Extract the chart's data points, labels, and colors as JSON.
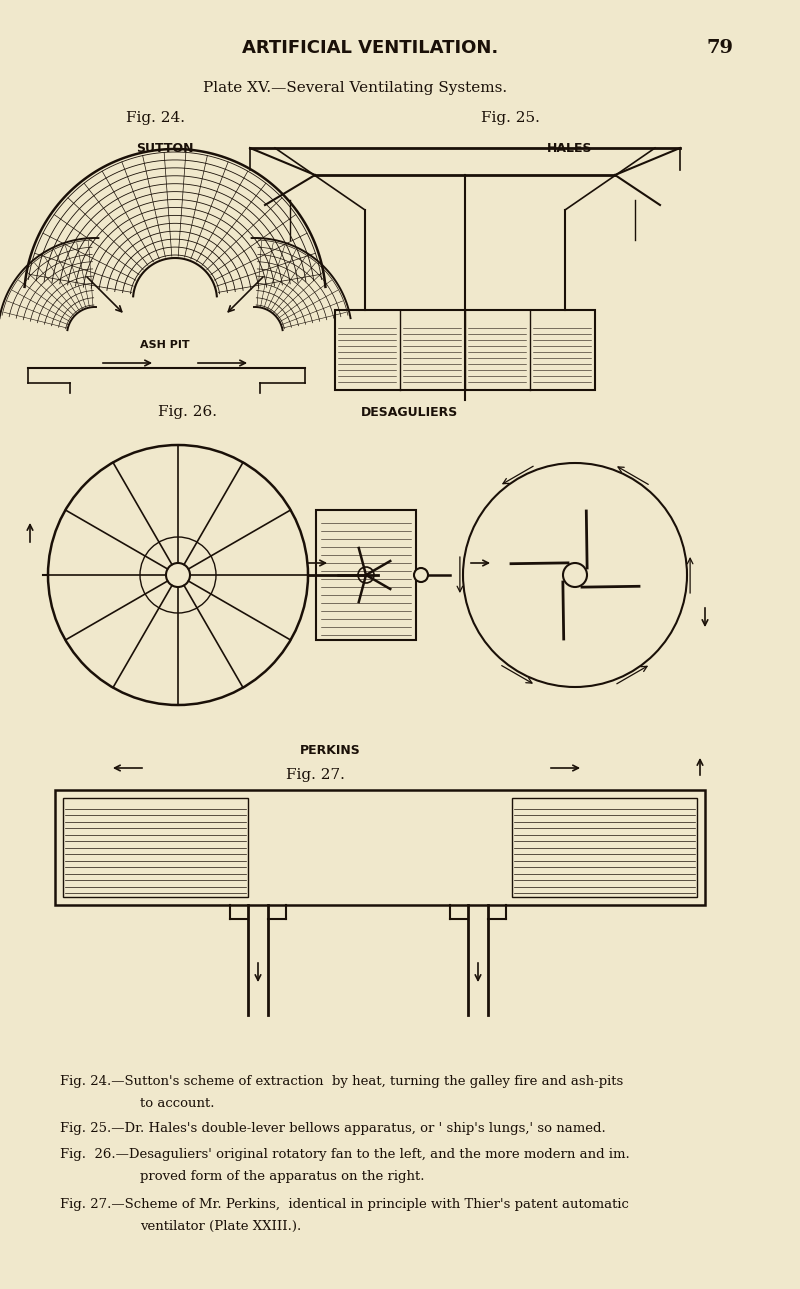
{
  "bg_color": "#f0e8cc",
  "ink_color": "#1a1008",
  "page_width": 8.0,
  "page_height": 12.89,
  "title_top": "ARTIFICIAL VENTILATION.",
  "page_num": "79",
  "plate_title": "Plate XV.—Several Ventilating Systems.",
  "fig24_label": "Fig. 24.",
  "fig25_label": "Fig. 25.",
  "fig26_label": "Fig. 26.",
  "fig27_label": "Fig. 27.",
  "sutton_label": "SUTTON",
  "hales_label": "HALES",
  "desaguliers_label": "DESAGULIERS",
  "perkins_label": "PERKINS",
  "ash_pit_label": "ASH PIT"
}
